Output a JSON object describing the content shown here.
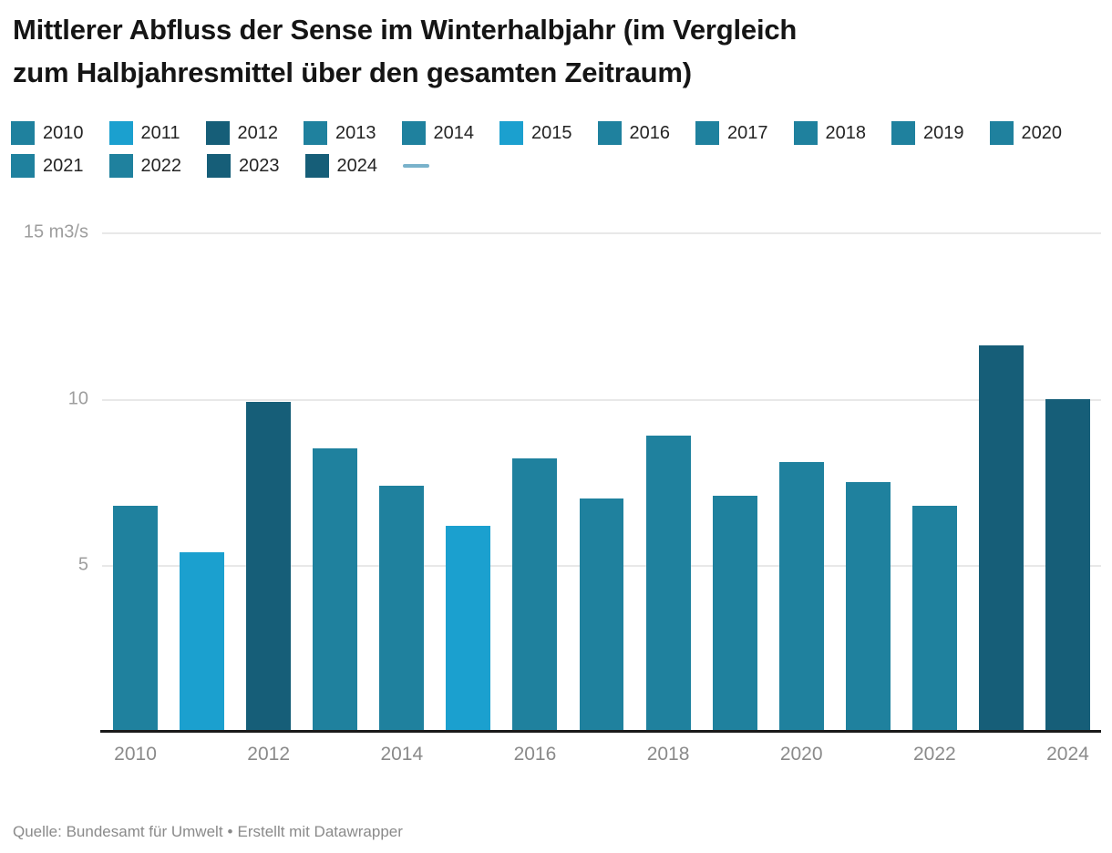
{
  "header": {
    "title": "Mittlerer Abfluss der Sense im Winterhalbjahr (im Vergleich zum Halbjahresmittel über den gesamten Zeitraum)",
    "title_lines": [
      "Mittlerer Abfluss der Sense im Winterhalbjahr (im Vergleich",
      "zum Halbjahresmittel über den gesamten Zeitraum)"
    ]
  },
  "colors": {
    "teal": "#1f819e",
    "light_blue": "#1ba0cf",
    "dark_blue": "#165e78",
    "mean_line_swatch": "#79b2cb",
    "gridline": "#e8e8e8",
    "baseline": "#1a1a1a",
    "y_axis_text": "#9e9e9e",
    "x_axis_text": "#8a8a8a"
  },
  "legend": {
    "items": [
      {
        "label": "2010",
        "type": "square",
        "color": "#1f819e"
      },
      {
        "label": "2011",
        "type": "square",
        "color": "#1ba0cf"
      },
      {
        "label": "2012",
        "type": "square",
        "color": "#165e78"
      },
      {
        "label": "2013",
        "type": "square",
        "color": "#1f819e"
      },
      {
        "label": "2014",
        "type": "square",
        "color": "#1f819e"
      },
      {
        "label": "2015",
        "type": "square",
        "color": "#1ba0cf"
      },
      {
        "label": "2016",
        "type": "square",
        "color": "#1f819e"
      },
      {
        "label": "2017",
        "type": "square",
        "color": "#1f819e"
      },
      {
        "label": "2018",
        "type": "square",
        "color": "#1f819e"
      },
      {
        "label": "2019",
        "type": "square",
        "color": "#1f819e"
      },
      {
        "label": "2020",
        "type": "square",
        "color": "#1f819e"
      },
      {
        "label": "2021",
        "type": "square",
        "color": "#1f819e"
      },
      {
        "label": "2022",
        "type": "square",
        "color": "#1f819e"
      },
      {
        "label": "2023",
        "type": "square",
        "color": "#165e78"
      },
      {
        "label": "2024",
        "type": "square",
        "color": "#165e78"
      },
      {
        "label": "",
        "type": "line",
        "color": "#79b2cb"
      }
    ]
  },
  "chart_data": {
    "type": "bar",
    "title": "Mittlerer Abfluss der Sense im Winterhalbjahr (im Vergleich zum Halbjahresmittel über den gesamten Zeitraum)",
    "unit": "m3/s",
    "categories": [
      "2010",
      "2011",
      "2012",
      "2013",
      "2014",
      "2015",
      "2016",
      "2017",
      "2018",
      "2019",
      "2020",
      "2021",
      "2022",
      "2023",
      "2024"
    ],
    "values": [
      6.8,
      5.4,
      9.9,
      8.5,
      7.4,
      6.2,
      8.2,
      7.0,
      8.9,
      7.1,
      8.1,
      7.5,
      6.8,
      11.6,
      10.0
    ],
    "bar_colors": [
      "#1f819e",
      "#1ba0cf",
      "#165e78",
      "#1f819e",
      "#1f819e",
      "#1ba0cf",
      "#1f819e",
      "#1f819e",
      "#1f819e",
      "#1f819e",
      "#1f819e",
      "#1f819e",
      "#1f819e",
      "#165e78",
      "#165e78"
    ],
    "ylim": [
      0,
      15
    ],
    "yticks": [
      {
        "value": 15,
        "label": "15 m3/s"
      },
      {
        "value": 10,
        "label": "10"
      },
      {
        "value": 5,
        "label": "5"
      }
    ],
    "x_tick_labels": [
      "2010",
      "2012",
      "2014",
      "2016",
      "2018",
      "2020",
      "2022",
      "2024"
    ],
    "grid": "horizontal",
    "legend_position": "top"
  },
  "footer": {
    "source": "Quelle: Bundesamt für Umwelt",
    "separator": "•",
    "attribution": "Erstellt mit Datawrapper"
  }
}
